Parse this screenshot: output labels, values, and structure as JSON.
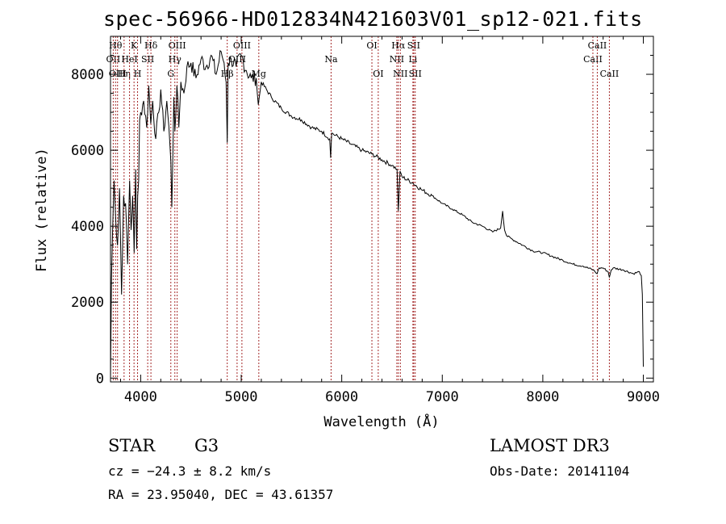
{
  "title": "spec-56966-HD012834N421603V01_sp12-021.fits",
  "footer": {
    "object_class": "STAR",
    "subclass": "G3",
    "survey": "LAMOST DR3",
    "cz": "cz = −24.3 ± 8.2 km/s",
    "obs_date": "Obs-Date: 20141104",
    "coords": "RA =  23.95040, DEC =  43.61357"
  },
  "chart_data": {
    "type": "line",
    "title": "spec-56966-HD012834N421603V01_sp12-021.fits",
    "xlabel": "Wavelength (Å)",
    "ylabel": "Flux (relative)",
    "xlim": [
      3700,
      9100
    ],
    "ylim": [
      -100,
      9000
    ],
    "xticks": [
      4000,
      5000,
      6000,
      7000,
      8000,
      9000
    ],
    "yticks": [
      0,
      2000,
      4000,
      6000,
      8000
    ],
    "series": [
      {
        "name": "spectrum",
        "x": [
          3700,
          3710,
          3720,
          3735,
          3750,
          3770,
          3790,
          3810,
          3830,
          3850,
          3870,
          3890,
          3905,
          3920,
          3935,
          3950,
          3960,
          3970,
          3980,
          3990,
          4000,
          4030,
          4060,
          4080,
          4100,
          4120,
          4150,
          4180,
          4200,
          4230,
          4260,
          4290,
          4300,
          4310,
          4330,
          4340,
          4360,
          4380,
          4400,
          4430,
          4460,
          4500,
          4550,
          4600,
          4650,
          4700,
          4750,
          4800,
          4830,
          4850,
          4861,
          4870,
          4900,
          4950,
          5000,
          5050,
          5100,
          5150,
          5170,
          5200,
          5300,
          5400,
          5500,
          5600,
          5700,
          5800,
          5880,
          5890,
          5900,
          6000,
          6100,
          6200,
          6300,
          6400,
          6500,
          6550,
          6563,
          6580,
          6600,
          6700,
          6800,
          6900,
          7000,
          7100,
          7200,
          7300,
          7400,
          7500,
          7580,
          7600,
          7620,
          7640,
          7700,
          7800,
          7900,
          8000,
          8100,
          8200,
          8300,
          8400,
          8500,
          8540,
          8560,
          8600,
          8650,
          8662,
          8680,
          8700,
          8800,
          8900,
          8960,
          8980,
          8990,
          9000
        ],
        "y": [
          0,
          2600,
          3800,
          5200,
          4300,
          3500,
          5000,
          2200,
          4800,
          4600,
          3000,
          5200,
          3900,
          4800,
          3300,
          5500,
          3400,
          4800,
          5200,
          6800,
          7000,
          7300,
          6600,
          7700,
          6700,
          7300,
          6300,
          7000,
          7600,
          6500,
          7300,
          6200,
          5700,
          4500,
          7400,
          6500,
          7700,
          6600,
          7800,
          7500,
          8200,
          8300,
          7900,
          8400,
          8200,
          8500,
          8000,
          8600,
          8300,
          7800,
          6200,
          8300,
          8400,
          8200,
          8500,
          8100,
          7900,
          7900,
          7200,
          7800,
          7400,
          7100,
          6900,
          6800,
          6600,
          6500,
          6300,
          5800,
          6450,
          6300,
          6150,
          6000,
          5900,
          5750,
          5600,
          5500,
          4400,
          5450,
          5300,
          5150,
          4950,
          4800,
          4600,
          4450,
          4300,
          4100,
          4000,
          3850,
          3950,
          4400,
          3900,
          3750,
          3650,
          3500,
          3350,
          3300,
          3200,
          3100,
          3000,
          2950,
          2850,
          2750,
          2900,
          2900,
          2800,
          2650,
          2850,
          2900,
          2850,
          2750,
          2800,
          2700,
          2200,
          300
        ]
      }
    ],
    "lines": [
      {
        "name": "OII",
        "x": 3727,
        "row": 1
      },
      {
        "name": "Hθ",
        "x": 3750,
        "row": 0
      },
      {
        "name": "OIII",
        "x": 3770,
        "row": 2
      },
      {
        "name": "Hη",
        "x": 3835,
        "row": 2
      },
      {
        "name": "HeI",
        "x": 3889,
        "row": 1
      },
      {
        "name": "K",
        "x": 3934,
        "row": 0
      },
      {
        "name": "H",
        "x": 3969,
        "row": 2
      },
      {
        "name": "SII",
        "x": 4070,
        "row": 1
      },
      {
        "name": "Hδ",
        "x": 4102,
        "row": 0
      },
      {
        "name": "G",
        "x": 4300,
        "row": 2
      },
      {
        "name": "Hγ",
        "x": 4340,
        "row": 1
      },
      {
        "name": "OIII",
        "x": 4363,
        "row": 0
      },
      {
        "name": "Hβ",
        "x": 4861,
        "row": 2
      },
      {
        "name": "OIII",
        "x": 4959,
        "row": 1
      },
      {
        "name": "OIII",
        "x": 5007,
        "row": 0
      },
      {
        "name": "Mg",
        "x": 5175,
        "row": 2
      },
      {
        "name": "Na",
        "x": 5894,
        "row": 1
      },
      {
        "name": "OI",
        "x": 6300,
        "row": 0
      },
      {
        "name": "OI",
        "x": 6363,
        "row": 2
      },
      {
        "name": "NII",
        "x": 6548,
        "row": 1
      },
      {
        "name": "Hα",
        "x": 6563,
        "row": 0
      },
      {
        "name": "NII",
        "x": 6583,
        "row": 2
      },
      {
        "name": "Li",
        "x": 6708,
        "row": 1
      },
      {
        "name": "SII",
        "x": 6716,
        "row": 0
      },
      {
        "name": "SII",
        "x": 6731,
        "row": 2
      },
      {
        "name": "CaII",
        "x": 8498,
        "row": 1
      },
      {
        "name": "CaII",
        "x": 8542,
        "row": 0
      },
      {
        "name": "CaII",
        "x": 8662,
        "row": 2
      }
    ]
  }
}
